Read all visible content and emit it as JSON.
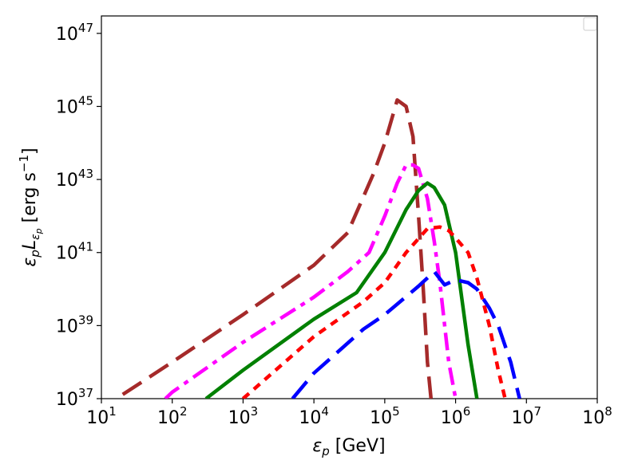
{
  "chart_data": {
    "type": "line",
    "title": "",
    "x_scale": "log",
    "y_scale": "log",
    "xlim": [
      10,
      100000000
    ],
    "ylim": [
      1e+37,
      3e+47
    ],
    "x_ticks": [
      {
        "base": "10",
        "exp": "1"
      },
      {
        "base": "10",
        "exp": "2"
      },
      {
        "base": "10",
        "exp": "3"
      },
      {
        "base": "10",
        "exp": "4"
      },
      {
        "base": "10",
        "exp": "5"
      },
      {
        "base": "10",
        "exp": "6"
      },
      {
        "base": "10",
        "exp": "7"
      },
      {
        "base": "10",
        "exp": "8"
      }
    ],
    "y_ticks": [
      {
        "base": "10",
        "exp": "37"
      },
      {
        "base": "10",
        "exp": "39"
      },
      {
        "base": "10",
        "exp": "41"
      },
      {
        "base": "10",
        "exp": "43"
      },
      {
        "base": "10",
        "exp": "45"
      },
      {
        "base": "10",
        "exp": "47"
      }
    ],
    "xlabel": {
      "main": "ε",
      "sub": "p",
      "unit": " [GeV]"
    },
    "ylabel": {
      "eps": "ε",
      "eps_sub": "p",
      "L": "L",
      "L_sub": "ε",
      "L_subsub": "p",
      "unit_open": " [erg s",
      "unit_exp": "−1",
      "unit_close": "]"
    },
    "legend": {
      "placement": "top-right",
      "entries": []
    },
    "grid": false,
    "series": [
      {
        "name": "brown-dashed",
        "color": "#a52a2a",
        "style": "dashed",
        "x": [
          20,
          100,
          1000,
          10000,
          30000,
          70000,
          100000,
          150000,
          200000,
          250000,
          300000,
          350000,
          400000,
          450000
        ],
        "y": [
          1.3e+37,
          1e+38,
          2e+39,
          4.5e+40,
          3.5e+41,
          1.5e+43,
          1e+44,
          1.5e+45,
          1e+45,
          1.5e+44,
          1e+42,
          1e+40,
          1e+38,
          1e+37
        ]
      },
      {
        "name": "magenta-dashdot",
        "color": "#ff00ff",
        "style": "dashdot",
        "x": [
          80,
          100,
          1000,
          10000,
          30000,
          60000,
          100000,
          150000,
          200000,
          250000,
          300000,
          400000,
          500000,
          600000,
          800000,
          1000000
        ],
        "y": [
          1e+37,
          1.5e+37,
          3.5e+38,
          6e+39,
          3e+40,
          1e+41,
          1e+42,
          8e+42,
          2.5e+43,
          2.5e+43,
          2e+43,
          3e+42,
          2e+41,
          1.5e+40,
          1e+38,
          1e+37
        ]
      },
      {
        "name": "green-solid",
        "color": "#008000",
        "style": "solid",
        "x": [
          300,
          1000,
          10000,
          40000,
          100000,
          200000,
          300000,
          400000,
          500000,
          700000,
          1000000,
          1500000,
          2000000
        ],
        "y": [
          1e+37,
          6e+37,
          1.5e+39,
          8e+39,
          1e+41,
          1.5e+42,
          5e+42,
          8e+42,
          6e+42,
          2e+42,
          1e+41,
          3e+38,
          1e+37
        ]
      },
      {
        "name": "red-dotted",
        "color": "#ff0000",
        "style": "dotted",
        "x": [
          1000,
          10000,
          50000,
          100000,
          200000,
          400000,
          600000,
          800000,
          1000000,
          1500000,
          2000000,
          3000000,
          4000000,
          5000000
        ],
        "y": [
          1e+37,
          5e+38,
          4.5e+39,
          1.5e+40,
          1e+41,
          4.5e+41,
          5e+41,
          4e+41,
          2.5e+41,
          1e+41,
          2e+40,
          1e+39,
          6e+37,
          1e+37
        ]
      },
      {
        "name": "blue-dashed",
        "color": "#0000ff",
        "style": "dashed",
        "x": [
          5000,
          10000,
          50000,
          100000,
          300000,
          500000,
          700000,
          1000000,
          1500000,
          2000000,
          3000000,
          4000000,
          6000000,
          8000000
        ],
        "y": [
          1e+37,
          5e+37,
          8e+38,
          2e+39,
          1.2e+40,
          3e+40,
          1.3e+40,
          1.8e+40,
          1.5e+40,
          1e+40,
          3e+39,
          1e+39,
          1e+38,
          1e+37
        ]
      }
    ]
  }
}
